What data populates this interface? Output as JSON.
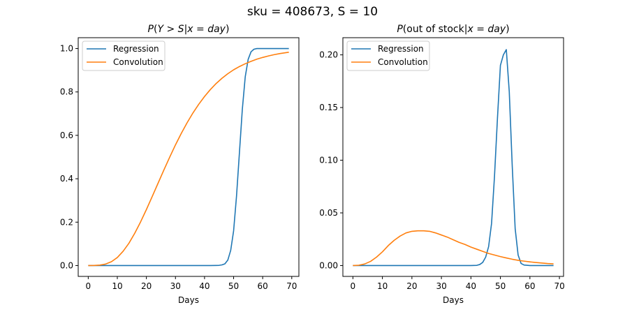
{
  "figure": {
    "suptitle": "sku = 408673, S = 10"
  },
  "chart_data": [
    {
      "type": "line",
      "title": "P(Y > S|x = day)",
      "xlabel": "Days",
      "ylabel": "",
      "xlim": [
        -3.45,
        72.45
      ],
      "ylim": [
        -0.05,
        1.05
      ],
      "xticks": [
        0,
        10,
        20,
        30,
        40,
        50,
        60,
        70
      ],
      "yticks": [
        0.0,
        0.2,
        0.4,
        0.6,
        0.8,
        1.0
      ],
      "ytick_labels": [
        "0.0",
        "0.2",
        "0.4",
        "0.6",
        "0.8",
        "1.0"
      ],
      "legend": "top-left",
      "grid": false,
      "series": [
        {
          "name": "Regression",
          "color": "#1f77b4",
          "x": [
            0,
            5,
            10,
            15,
            20,
            25,
            30,
            35,
            40,
            42,
            44,
            45,
            46,
            47,
            48,
            49,
            50,
            51,
            52,
            53,
            54,
            55,
            56,
            57,
            58,
            59,
            60,
            62,
            64,
            66,
            68,
            69
          ],
          "y": [
            0,
            0,
            0,
            0,
            0,
            0,
            0,
            0,
            0,
            0,
            0.0005,
            0.001,
            0.003,
            0.008,
            0.025,
            0.07,
            0.16,
            0.32,
            0.52,
            0.72,
            0.87,
            0.95,
            0.985,
            0.997,
            1.0,
            1.0,
            1.0,
            1.0,
            1.0,
            1.0,
            1.0,
            1.0
          ]
        },
        {
          "name": "Convolution",
          "color": "#ff7f0e",
          "x": [
            0,
            2,
            4,
            6,
            8,
            10,
            12,
            14,
            16,
            18,
            20,
            22,
            24,
            26,
            28,
            30,
            32,
            34,
            36,
            38,
            40,
            42,
            44,
            46,
            48,
            50,
            52,
            54,
            56,
            58,
            60,
            62,
            64,
            66,
            68,
            69
          ],
          "y": [
            0.0,
            0.0003,
            0.002,
            0.007,
            0.018,
            0.037,
            0.066,
            0.103,
            0.149,
            0.201,
            0.258,
            0.318,
            0.379,
            0.44,
            0.499,
            0.556,
            0.609,
            0.658,
            0.703,
            0.743,
            0.779,
            0.811,
            0.839,
            0.863,
            0.884,
            0.902,
            0.917,
            0.93,
            0.941,
            0.951,
            0.959,
            0.966,
            0.972,
            0.977,
            0.981,
            0.983
          ]
        }
      ]
    },
    {
      "type": "line",
      "title": "P(out of stock|x = day)",
      "xlabel": "Days",
      "ylabel": "",
      "xlim": [
        -3.4,
        71.4
      ],
      "ylim": [
        -0.0103,
        0.2163
      ],
      "xticks": [
        0,
        10,
        20,
        30,
        40,
        50,
        60,
        70
      ],
      "yticks": [
        0.0,
        0.05,
        0.1,
        0.15,
        0.2
      ],
      "ytick_labels": [
        "0.00",
        "0.05",
        "0.10",
        "0.15",
        "0.20"
      ],
      "legend": "top-left",
      "grid": false,
      "series": [
        {
          "name": "Regression",
          "color": "#1f77b4",
          "x": [
            0,
            5,
            10,
            15,
            20,
            25,
            30,
            35,
            40,
            42,
            43,
            44,
            45,
            46,
            47,
            48,
            49,
            50,
            51,
            52,
            53,
            54,
            55,
            56,
            57,
            58,
            60,
            62,
            64,
            66,
            68
          ],
          "y": [
            0,
            0,
            0,
            0,
            0,
            0,
            0,
            0,
            0,
            0.0002,
            0.001,
            0.003,
            0.008,
            0.018,
            0.04,
            0.085,
            0.14,
            0.19,
            0.2,
            0.205,
            0.165,
            0.095,
            0.035,
            0.01,
            0.002,
            0.0005,
            0,
            0,
            0,
            0,
            0
          ]
        },
        {
          "name": "Convolution",
          "color": "#ff7f0e",
          "x": [
            0,
            2,
            4,
            6,
            8,
            10,
            12,
            14,
            16,
            18,
            20,
            22,
            24,
            26,
            28,
            30,
            32,
            34,
            36,
            38,
            40,
            42,
            44,
            46,
            48,
            50,
            52,
            54,
            56,
            58,
            60,
            62,
            64,
            66,
            68
          ],
          "y": [
            0.0,
            0.0003,
            0.0015,
            0.004,
            0.008,
            0.013,
            0.019,
            0.024,
            0.028,
            0.031,
            0.0325,
            0.033,
            0.033,
            0.0325,
            0.031,
            0.029,
            0.027,
            0.0245,
            0.022,
            0.02,
            0.0175,
            0.0155,
            0.0135,
            0.0115,
            0.01,
            0.0085,
            0.0072,
            0.006,
            0.005,
            0.0042,
            0.0035,
            0.0029,
            0.0024,
            0.0019,
            0.0016
          ]
        }
      ]
    }
  ]
}
